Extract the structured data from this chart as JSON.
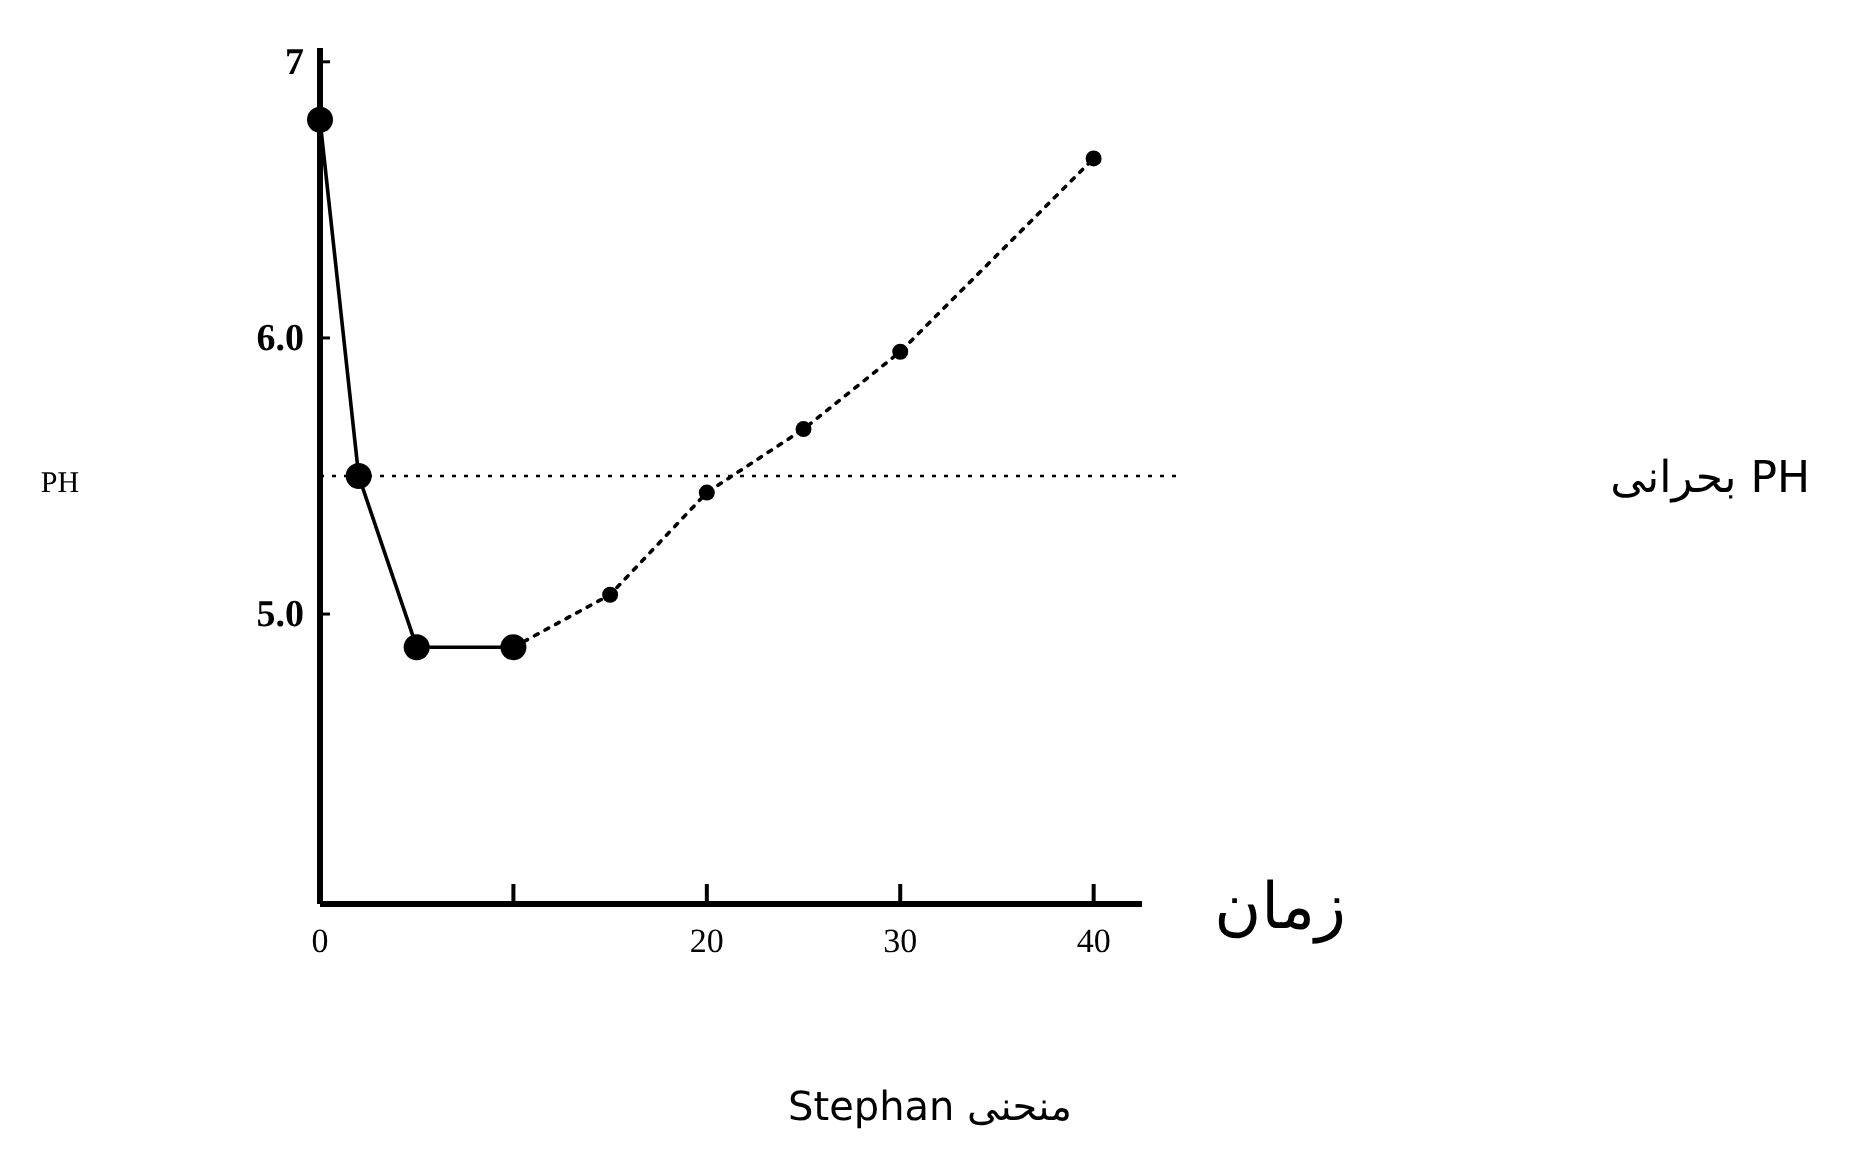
{
  "chart_data": {
    "type": "line",
    "title": "منحنی Stephan",
    "xlabel": "زمان",
    "annotations": [
      "PH"
    ],
    "xlim": [
      0,
      42.5
    ],
    "ylim": [
      3.95,
      7.05
    ],
    "xticks": [
      0,
      {
        "value": 10,
        "label": null
      },
      20,
      30,
      40
    ],
    "yticks": [
      {
        "value": 5,
        "label": "5.0"
      },
      {
        "value": 6,
        "label": "6.0"
      },
      7
    ],
    "marker": "circle",
    "grid": false,
    "series": [
      {
        "color": "#000000",
        "line_style": "solid",
        "x": [
          0,
          2,
          5,
          10
        ],
        "values": [
          6.79,
          5.5,
          4.88,
          4.88
        ]
      },
      {
        "color": "#000000",
        "line_style": "dotted",
        "x": [
          10,
          15,
          20,
          25,
          30,
          40
        ],
        "values": [
          4.88,
          5.07,
          5.44,
          5.67,
          5.95,
          6.65
        ]
      }
    ],
    "ref_lines": [
      {
        "axis": "y",
        "value": 5.5,
        "label": "PH بحرانی",
        "color": "#000000",
        "line_style": "dotted"
      }
    ]
  }
}
